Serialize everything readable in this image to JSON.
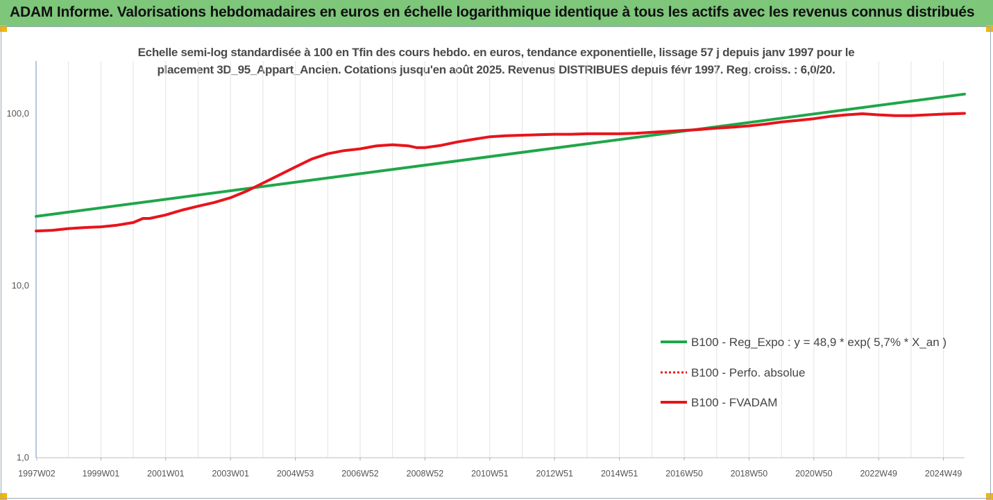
{
  "header": {
    "title": "ADAM Informe. Valorisations hebdomadaires en euros en échelle logarithmique identique à tous les actifs avec les revenus connus distribués"
  },
  "chart_data": {
    "type": "line",
    "title": "Echelle semi-log standardisée à 100 en Tfin des cours hebdo. en euros, tendance exponentielle, lissage 57 j depuis janv 1997 pour le placement 3D_95_Appart_Ancien. Cotations jusqu'en août 2025. Revenus DISTRIBUES depuis févr 1997. Reg. croiss. : 6,0/20.",
    "title_line1": "Echelle semi-log standardisée à 100 en Tfin des cours hebdo. en euros, tendance exponentielle, lissage 57 j depuis janv 1997 pour le",
    "title_line2": "placement 3D_95_Appart_Ancien. Cotations jusqu'en août 2025. Revenus DISTRIBUES depuis févr 1997. Reg. croiss. : 6,0/20.",
    "yscale": "log",
    "ylim": [
      1,
      200
    ],
    "xlim": [
      1997.0,
      2025.65
    ],
    "grid": "vertical",
    "legend_position": "right",
    "y_ticks": [
      {
        "value": 1,
        "label": "1,0"
      },
      {
        "value": 10,
        "label": "10,0"
      },
      {
        "value": 100,
        "label": "100,0"
      }
    ],
    "x_ticks": [
      {
        "x": 1997.02,
        "label": "1997W02"
      },
      {
        "x": 1999.0,
        "label": "1999W01"
      },
      {
        "x": 2001.0,
        "label": "2001W01"
      },
      {
        "x": 2003.0,
        "label": "2003W01"
      },
      {
        "x": 2005.0,
        "label": "2004W53"
      },
      {
        "x": 2007.0,
        "label": "2006W52"
      },
      {
        "x": 2009.0,
        "label": "2008W52"
      },
      {
        "x": 2011.0,
        "label": "2010W51"
      },
      {
        "x": 2013.0,
        "label": "2012W51"
      },
      {
        "x": 2015.0,
        "label": "2014W51"
      },
      {
        "x": 2017.0,
        "label": "2016W50"
      },
      {
        "x": 2019.0,
        "label": "2018W50"
      },
      {
        "x": 2021.0,
        "label": "2020W50"
      },
      {
        "x": 2023.0,
        "label": "2022W49"
      },
      {
        "x": 2025.0,
        "label": "2024W49"
      }
    ],
    "series": [
      {
        "name": "B100 - Reg_Expo : y = 48,9 * exp( 5,7% *  X_an )",
        "color": "#1fa64a",
        "style": "solid",
        "x": [
          1997.0,
          2025.65
        ],
        "y": [
          25.3,
          130
        ]
      },
      {
        "name": "B100 - Perfo. absolue",
        "color": "#e8141b",
        "style": "dotted",
        "x": [],
        "y": []
      },
      {
        "name": "B100 - FVADAM",
        "color": "#e8141b",
        "style": "solid",
        "x": [
          1997.0,
          1997.5,
          1998.0,
          1998.5,
          1999.0,
          1999.5,
          2000.0,
          2000.3,
          2000.5,
          2001.0,
          2001.5,
          2002.0,
          2002.5,
          2003.0,
          2003.5,
          2004.0,
          2004.5,
          2005.0,
          2005.5,
          2006.0,
          2006.5,
          2007.0,
          2007.5,
          2008.0,
          2008.5,
          2008.75,
          2009.0,
          2009.5,
          2010.0,
          2010.5,
          2011.0,
          2011.5,
          2012.0,
          2012.5,
          2013.0,
          2013.5,
          2014.0,
          2014.5,
          2015.0,
          2015.5,
          2016.0,
          2016.5,
          2017.0,
          2017.5,
          2018.0,
          2018.5,
          2019.0,
          2019.5,
          2020.0,
          2020.5,
          2021.0,
          2021.5,
          2022.0,
          2022.5,
          2023.0,
          2023.5,
          2024.0,
          2024.5,
          2025.0,
          2025.65
        ],
        "y": [
          20.8,
          21.0,
          21.5,
          21.8,
          22.0,
          22.5,
          23.3,
          24.6,
          24.6,
          25.8,
          27.5,
          29.0,
          30.5,
          32.5,
          35.5,
          39.5,
          44.0,
          49.0,
          54.5,
          58.5,
          61.0,
          62.5,
          65.0,
          66.0,
          65.0,
          63.5,
          63.5,
          65.5,
          68.5,
          71.0,
          73.5,
          74.5,
          75.0,
          75.5,
          76.0,
          76.0,
          76.5,
          76.5,
          76.5,
          77.0,
          78.0,
          79.0,
          80.0,
          81.0,
          82.5,
          83.5,
          85.0,
          87.0,
          89.5,
          91.5,
          93.5,
          96.5,
          98.5,
          100.0,
          98.5,
          97.5,
          97.5,
          98.5,
          99.5,
          100.5
        ]
      }
    ]
  }
}
